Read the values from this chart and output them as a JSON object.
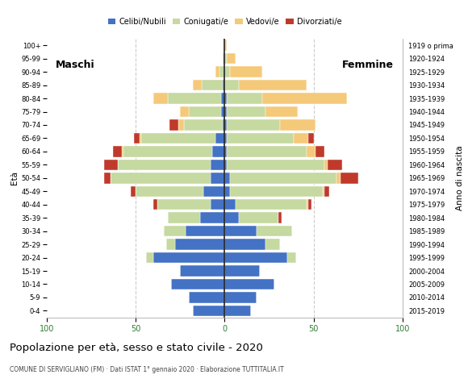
{
  "age_groups": [
    "0-4",
    "5-9",
    "10-14",
    "15-19",
    "20-24",
    "25-29",
    "30-34",
    "35-39",
    "40-44",
    "45-49",
    "50-54",
    "55-59",
    "60-64",
    "65-69",
    "70-74",
    "75-79",
    "80-84",
    "85-89",
    "90-94",
    "95-99",
    "100+"
  ],
  "birth_years": [
    "2015-2019",
    "2010-2014",
    "2005-2009",
    "2000-2004",
    "1995-1999",
    "1990-1994",
    "1985-1989",
    "1980-1984",
    "1975-1979",
    "1970-1974",
    "1965-1969",
    "1960-1964",
    "1955-1959",
    "1950-1954",
    "1945-1949",
    "1940-1944",
    "1935-1939",
    "1930-1934",
    "1925-1929",
    "1920-1924",
    "1919 o prima"
  ],
  "males": {
    "celibe": [
      18,
      20,
      30,
      25,
      40,
      28,
      22,
      14,
      8,
      12,
      8,
      8,
      7,
      5,
      1,
      2,
      2,
      1,
      0,
      0,
      0
    ],
    "coniugato": [
      0,
      0,
      0,
      0,
      4,
      5,
      12,
      18,
      30,
      38,
      56,
      52,
      50,
      42,
      22,
      18,
      30,
      12,
      3,
      1,
      0
    ],
    "vedovo": [
      0,
      0,
      0,
      0,
      0,
      0,
      0,
      0,
      0,
      0,
      0,
      0,
      1,
      1,
      3,
      5,
      8,
      5,
      2,
      0,
      0
    ],
    "divorziato": [
      0,
      0,
      0,
      0,
      0,
      0,
      0,
      0,
      2,
      3,
      4,
      8,
      5,
      3,
      5,
      0,
      0,
      0,
      0,
      0,
      0
    ]
  },
  "females": {
    "celibe": [
      15,
      18,
      28,
      20,
      35,
      23,
      18,
      8,
      6,
      3,
      3,
      1,
      1,
      1,
      1,
      1,
      1,
      0,
      0,
      0,
      0
    ],
    "coniugato": [
      0,
      0,
      0,
      0,
      5,
      8,
      20,
      22,
      40,
      52,
      60,
      55,
      45,
      38,
      30,
      22,
      20,
      8,
      3,
      1,
      0
    ],
    "vedovo": [
      0,
      0,
      0,
      0,
      0,
      0,
      0,
      0,
      1,
      1,
      2,
      2,
      5,
      8,
      20,
      18,
      48,
      38,
      18,
      5,
      1
    ],
    "divorziato": [
      0,
      0,
      0,
      0,
      0,
      0,
      0,
      2,
      2,
      3,
      10,
      8,
      5,
      3,
      0,
      0,
      0,
      0,
      0,
      0,
      0
    ]
  },
  "colors": {
    "celibe": "#4472c4",
    "coniugato": "#c5d9a0",
    "vedovo": "#f5c97a",
    "divorziato": "#c0392b"
  },
  "legend_labels": [
    "Celibi/Nubili",
    "Coniugati/e",
    "Vedovi/e",
    "Divorziati/e"
  ],
  "title": "Popolazione per età, sesso e stato civile - 2020",
  "subtitle": "COMUNE DI SERVIGLIANO (FM) · Dati ISTAT 1° gennaio 2020 · Elaborazione TUTTITALIA.IT",
  "xlabel_left": "Maschi",
  "xlabel_right": "Femmine",
  "ylabel_left": "Età",
  "ylabel_right": "Anno di nascita",
  "xlim": 100,
  "background_color": "#ffffff",
  "grid_color": "#cccccc"
}
